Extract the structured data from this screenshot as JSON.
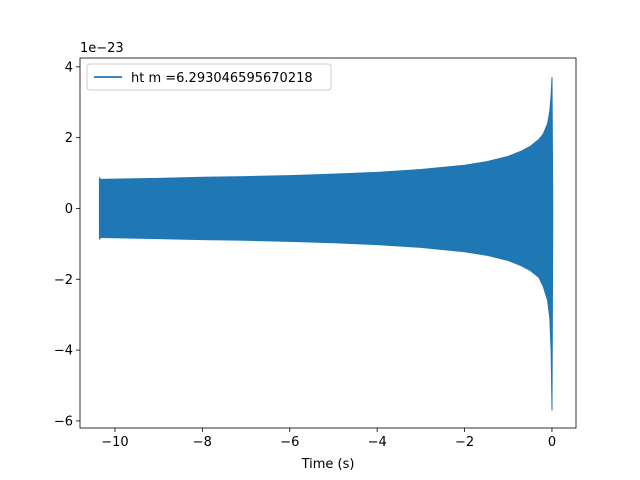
{
  "chart_data": {
    "type": "line",
    "title": "",
    "xlabel": "Time (s)",
    "ylabel": "",
    "y_offset_label": "1e−23",
    "xlim": [
      -10.8,
      0.55
    ],
    "ylim": [
      -6.2,
      4.25
    ],
    "x_ticks": [
      -10,
      -8,
      -6,
      -4,
      -2,
      0
    ],
    "x_tick_labels": [
      "−10",
      "−8",
      "−6",
      "−4",
      "−2",
      "0"
    ],
    "y_ticks": [
      -6,
      -4,
      -2,
      0,
      2,
      4
    ],
    "y_tick_labels": [
      "−6",
      "−4",
      "−2",
      "0",
      "2",
      "4"
    ],
    "grid": false,
    "legend_position": "upper-left",
    "series": [
      {
        "name": "ht m =6.293046595670218",
        "color": "#1f77b4",
        "x": [
          -10.35,
          -9.0,
          -8.0,
          -7.0,
          -6.0,
          -5.0,
          -4.0,
          -3.0,
          -2.0,
          -1.5,
          -1.0,
          -0.7,
          -0.5,
          -0.3,
          -0.2,
          -0.1,
          -0.05,
          -0.02,
          0.0,
          0.02
        ],
        "y_upper": [
          0.82,
          0.85,
          0.88,
          0.9,
          0.93,
          0.97,
          1.02,
          1.1,
          1.22,
          1.32,
          1.47,
          1.62,
          1.75,
          1.95,
          2.1,
          2.4,
          2.75,
          3.2,
          3.7,
          0.0
        ],
        "y_lower": [
          -0.82,
          -0.85,
          -0.88,
          -0.9,
          -0.93,
          -0.97,
          -1.02,
          -1.1,
          -1.22,
          -1.32,
          -1.47,
          -1.62,
          -1.75,
          -1.95,
          -2.2,
          -2.6,
          -3.1,
          -4.0,
          -5.7,
          0.0
        ]
      }
    ]
  }
}
